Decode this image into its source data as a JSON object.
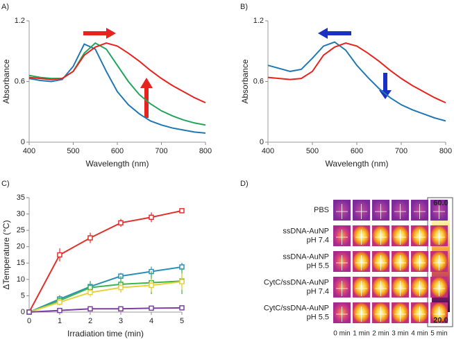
{
  "chart_data": [
    {
      "type": "line",
      "label": "A)",
      "xlabel": "Wavelength (nm)",
      "ylabel": "Absorbance",
      "x": [
        400,
        425,
        450,
        475,
        500,
        525,
        550,
        575,
        600,
        625,
        650,
        675,
        700,
        725,
        750,
        775,
        800
      ],
      "xlim": [
        400,
        800
      ],
      "xticks": [
        400,
        500,
        600,
        700,
        800
      ],
      "ylim": [
        0,
        1.2
      ],
      "yticks": [
        0,
        0.6,
        1.2
      ],
      "series": [
        {
          "color": "#1f77b4",
          "values": [
            0.63,
            0.61,
            0.6,
            0.62,
            0.75,
            0.97,
            0.92,
            0.7,
            0.5,
            0.37,
            0.28,
            0.21,
            0.17,
            0.14,
            0.12,
            0.1,
            0.09
          ]
        },
        {
          "color": "#22a55a",
          "values": [
            0.66,
            0.64,
            0.63,
            0.63,
            0.7,
            0.88,
            0.98,
            0.92,
            0.76,
            0.6,
            0.47,
            0.38,
            0.31,
            0.26,
            0.22,
            0.19,
            0.17
          ]
        },
        {
          "color": "#e8231e",
          "values": [
            0.64,
            0.63,
            0.62,
            0.63,
            0.7,
            0.86,
            0.94,
            0.98,
            0.95,
            0.88,
            0.8,
            0.71,
            0.63,
            0.56,
            0.5,
            0.44,
            0.39
          ]
        }
      ]
    },
    {
      "type": "line",
      "label": "B)",
      "xlabel": "Wavelength (nm)",
      "ylabel": "Absorbance",
      "x": [
        400,
        425,
        450,
        475,
        500,
        525,
        550,
        575,
        600,
        625,
        650,
        675,
        700,
        725,
        750,
        775,
        800
      ],
      "xlim": [
        400,
        800
      ],
      "xticks": [
        400,
        500,
        600,
        700,
        800
      ],
      "ylim": [
        0,
        1.2
      ],
      "yticks": [
        0,
        0.6,
        1.2
      ],
      "series": [
        {
          "color": "#1f77b4",
          "values": [
            0.76,
            0.73,
            0.7,
            0.72,
            0.83,
            0.95,
            0.99,
            0.91,
            0.76,
            0.64,
            0.53,
            0.44,
            0.37,
            0.32,
            0.28,
            0.24,
            0.21
          ]
        },
        {
          "color": "#e8231e",
          "values": [
            0.64,
            0.63,
            0.62,
            0.63,
            0.7,
            0.86,
            0.94,
            0.98,
            0.95,
            0.88,
            0.8,
            0.71,
            0.63,
            0.56,
            0.5,
            0.44,
            0.39
          ]
        }
      ]
    },
    {
      "type": "line",
      "label": "C)",
      "xlabel": "Irradiation time (min)",
      "ylabel": "ΔTemperature (°C)",
      "x": [
        0,
        1,
        2,
        3,
        4,
        5
      ],
      "xlim": [
        0,
        5
      ],
      "xticks": [
        0,
        1,
        2,
        3,
        4,
        5
      ],
      "ylim": [
        0,
        35
      ],
      "yticks": [
        0,
        5,
        10,
        15,
        20,
        25,
        30,
        35
      ],
      "series": [
        {
          "color": "#e0302a",
          "values": [
            0,
            17.5,
            22.7,
            27.3,
            29,
            31
          ],
          "errors": [
            0,
            2,
            1.6,
            1.2,
            1.5,
            0.6
          ]
        },
        {
          "color": "#2a8fb8",
          "values": [
            0,
            4,
            7.8,
            11,
            12.4,
            13.8
          ],
          "errors": [
            0,
            1.2,
            1.6,
            1,
            1.5,
            1.3
          ]
        },
        {
          "color": "#3cb44b",
          "values": [
            0,
            3.5,
            7.5,
            8.5,
            9,
            9.5
          ],
          "errors": [
            0,
            1.2,
            2,
            2.5,
            3.5,
            4
          ]
        },
        {
          "color": "#e8d23c",
          "values": [
            0,
            3,
            6,
            7.5,
            8.2,
            9.3
          ],
          "errors": [
            0,
            1,
            1.4,
            1.5,
            2,
            2.5
          ]
        },
        {
          "color": "#7b3fa0",
          "values": [
            0,
            0.5,
            1,
            1,
            1.2,
            1.3
          ],
          "errors": [
            0,
            0.2,
            0.3,
            0.5,
            0.5,
            0.2
          ]
        }
      ]
    }
  ],
  "panel_d": {
    "label": "D)",
    "rows": [
      {
        "lines": [
          "PBS"
        ]
      },
      {
        "lines": [
          "ssDNA-AuNP",
          "pH 7.4"
        ]
      },
      {
        "lines": [
          "ssDNA-AuNP",
          "pH 5.5"
        ]
      },
      {
        "lines": [
          "CytC/ssDNA-AuNP",
          "pH 7.4"
        ]
      },
      {
        "lines": [
          "CytC/ssDNA-AuNP",
          "pH 5.5"
        ]
      }
    ],
    "columns": [
      "0 min",
      "1 min",
      "2 min",
      "3 min",
      "4 min",
      "5 min"
    ],
    "scale_max": "60.0",
    "scale_min": "20.0"
  }
}
